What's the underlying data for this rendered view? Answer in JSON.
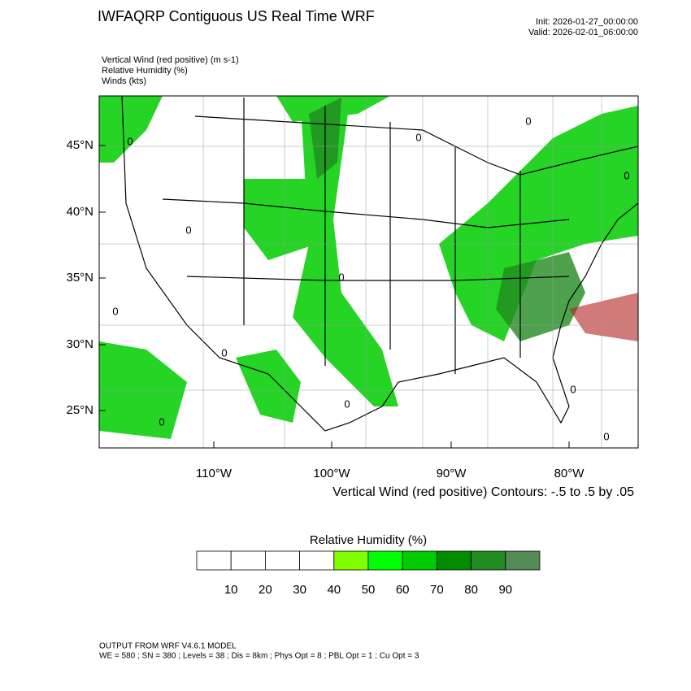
{
  "header": {
    "title": "IWFAQRP Contiguous US Real Time WRF",
    "init": "Init: 2026-01-27_00:00:00",
    "valid": "Valid: 2026-02-01_06:00:00"
  },
  "fields": [
    "Vertical Wind (red positive)   (m s-1)",
    "Relative Humidity   (%)",
    "Winds   (kts)"
  ],
  "map": {
    "lat_labels": [
      "45°N",
      "40°N",
      "35°N",
      "30°N",
      "25°N"
    ],
    "lon_labels": [
      "110°W",
      "100°W",
      "90°W",
      "80°W"
    ],
    "contour_label": "0",
    "contour_note": "Vertical Wind (red positive) Contours: -.5 to .5 by .05"
  },
  "colorbar": {
    "title": "Relative Humidity   (%)",
    "ticks": [
      10,
      20,
      30,
      40,
      50,
      60,
      70,
      80,
      90
    ],
    "colors": [
      "#ffffff",
      "#ffffff",
      "#ffffff",
      "#ffffff",
      "#7fff00",
      "#00ff00",
      "#00cd00",
      "#008b00",
      "#228b22",
      "#548b54"
    ]
  },
  "footer": [
    "OUTPUT FROM WRF V4.6.1 MODEL",
    "WE = 580 ; SN = 380 ; Levels = 38 ; Dis = 8km ; Phys Opt = 8 ; PBL Opt = 1 ; Cu Opt = 3"
  ]
}
